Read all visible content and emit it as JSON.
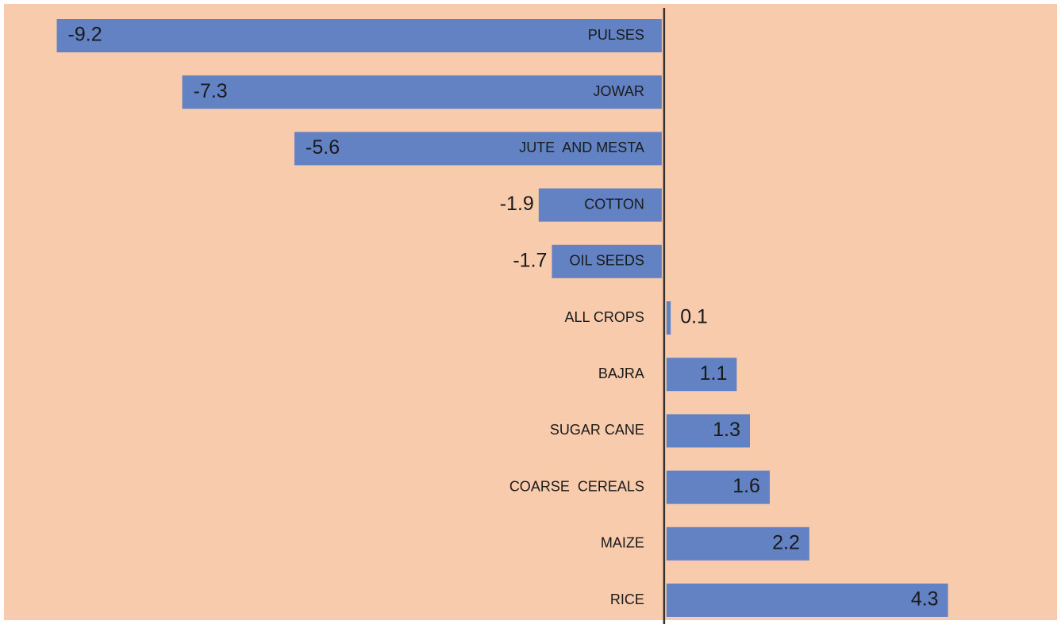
{
  "chart_data": {
    "type": "barh",
    "categories": [
      "PULSES",
      "JOWAR",
      "JUTE  AND MESTA",
      "COTTON",
      "OIL SEEDS",
      "ALL CROPS",
      "BAJRA",
      "SUGAR CANE",
      "COARSE  CEREALS",
      "MAIZE",
      "RICE"
    ],
    "values": [
      -9.2,
      -7.3,
      -5.6,
      -1.9,
      -1.7,
      0.1,
      1.1,
      1.3,
      1.6,
      2.2,
      4.3
    ],
    "color": "#6282c4",
    "xlim": [
      -10,
      6
    ]
  }
}
